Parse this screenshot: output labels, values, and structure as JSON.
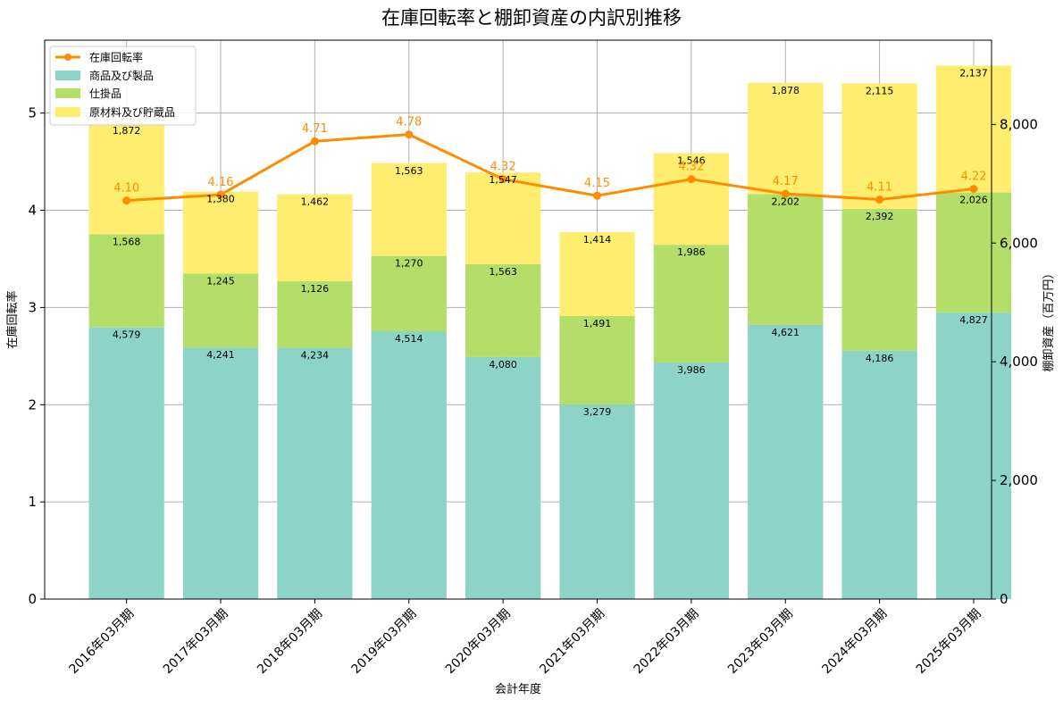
{
  "chart_data": {
    "type": "bar+line",
    "title": "在庫回転率と棚卸資産の内訳別推移",
    "xlabel": "会計年度",
    "ylabel_left": "在庫回転率",
    "ylabel_right": "棚卸資産（百万円）",
    "categories": [
      "2016年03月期",
      "2017年03月期",
      "2018年03月期",
      "2019年03月期",
      "2020年03月期",
      "2021年03月期",
      "2022年03月期",
      "2023年03月期",
      "2024年03月期",
      "2025年03月期"
    ],
    "ylim_left": [
      0,
      5.75
    ],
    "ylim_right": [
      0,
      9420
    ],
    "yticks_left": [
      0,
      1,
      2,
      3,
      4,
      5
    ],
    "yticks_right": [
      0,
      2000,
      4000,
      6000,
      8000
    ],
    "yticks_right_labels": [
      "0",
      "2,000",
      "4,000",
      "6,000",
      "8,000"
    ],
    "grid": true,
    "legend_position": "top-left",
    "bar_series": [
      {
        "name": "商品及び製品",
        "color": "#8dd3c7",
        "values": [
          4579,
          4241,
          4234,
          4514,
          4080,
          3279,
          3986,
          4621,
          4186,
          4827
        ],
        "labels": [
          "4,579",
          "4,241",
          "4,234",
          "4,514",
          "4,080",
          "3,279",
          "3,986",
          "4,621",
          "4,186",
          "4,827"
        ]
      },
      {
        "name": "仕掛品",
        "color": "#b3de69",
        "values": [
          1568,
          1245,
          1126,
          1270,
          1563,
          1491,
          1986,
          2202,
          2392,
          2026
        ],
        "labels": [
          "1,568",
          "1,245",
          "1,126",
          "1,270",
          "1,563",
          "1,491",
          "1,986",
          "2,202",
          "2,392",
          "2,026"
        ]
      },
      {
        "name": "原材料及び貯蔵品",
        "color": "#ffed6f",
        "values": [
          1872,
          1380,
          1462,
          1563,
          1547,
          1414,
          1546,
          1878,
          2115,
          2137
        ],
        "labels": [
          "1,872",
          "1,380",
          "1,462",
          "1,563",
          "1,547",
          "1,414",
          "1,546",
          "1,878",
          "2,115",
          "2,137"
        ]
      }
    ],
    "line_series": {
      "name": "在庫回転率",
      "color": "#ff8c00",
      "values": [
        4.1,
        4.16,
        4.71,
        4.78,
        4.32,
        4.15,
        4.32,
        4.17,
        4.11,
        4.22
      ],
      "labels": [
        "4.10",
        "4.16",
        "4.71",
        "4.78",
        "4.32",
        "4.15",
        "4.32",
        "4.17",
        "4.11",
        "4.22"
      ]
    }
  }
}
